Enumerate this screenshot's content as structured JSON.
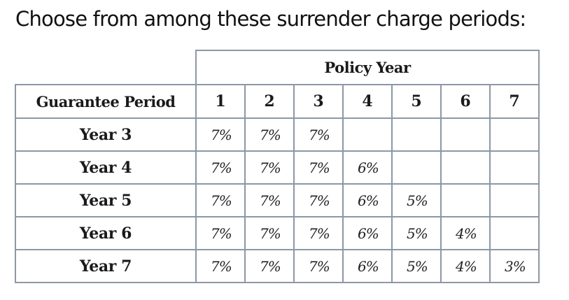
{
  "heading": "Choose from among these surrender charge periods:",
  "table": {
    "policy_year_header": "Policy Year",
    "guarantee_header": "Guarantee Period",
    "years": [
      "1",
      "2",
      "3",
      "4",
      "5",
      "6",
      "7"
    ],
    "rows": [
      {
        "label": "Year 3",
        "cells": [
          "7%",
          "7%",
          "7%",
          "",
          "",
          "",
          ""
        ]
      },
      {
        "label": "Year 4",
        "cells": [
          "7%",
          "7%",
          "7%",
          "6%",
          "",
          "",
          ""
        ]
      },
      {
        "label": "Year 5",
        "cells": [
          "7%",
          "7%",
          "7%",
          "6%",
          "5%",
          "",
          ""
        ]
      },
      {
        "label": "Year 6",
        "cells": [
          "7%",
          "7%",
          "7%",
          "6%",
          "5%",
          "4%",
          ""
        ]
      },
      {
        "label": "Year 7",
        "cells": [
          "7%",
          "7%",
          "7%",
          "6%",
          "5%",
          "4%",
          "3%"
        ]
      }
    ]
  }
}
